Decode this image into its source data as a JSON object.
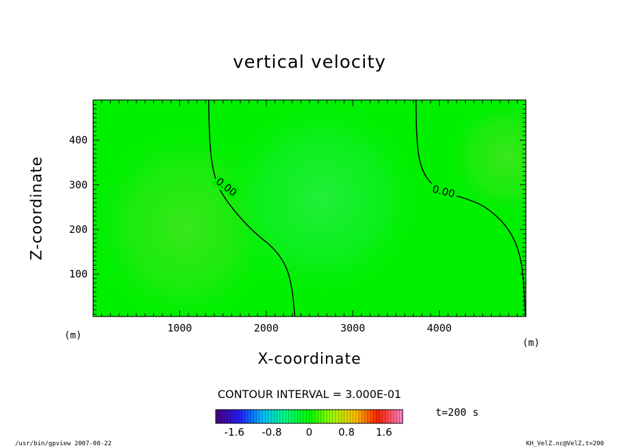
{
  "chart_data": {
    "type": "heatmap",
    "title": "vertical velocity",
    "xlabel": "X-coordinate",
    "ylabel": "Z-coordinate",
    "x_unit": "(m)",
    "y_unit": "(m)",
    "xlim": [
      0,
      5000
    ],
    "ylim": [
      5,
      490
    ],
    "xticks": [
      1000,
      2000,
      3000,
      4000
    ],
    "yticks": [
      100,
      200,
      300,
      400
    ],
    "contour_interval_label": "CONTOUR INTERVAL = 3.000E-01",
    "contour_labels": [
      "0.00",
      "0.00"
    ],
    "zero_contours": [
      [
        [
          1335,
          490
        ],
        [
          1340,
          430
        ],
        [
          1360,
          360
        ],
        [
          1420,
          305
        ],
        [
          1520,
          270
        ],
        [
          1680,
          230
        ],
        [
          1880,
          190
        ],
        [
          2080,
          160
        ],
        [
          2230,
          120
        ],
        [
          2300,
          70
        ],
        [
          2330,
          5
        ]
      ],
      [
        [
          3730,
          490
        ],
        [
          3735,
          420
        ],
        [
          3760,
          360
        ],
        [
          3830,
          320
        ],
        [
          3950,
          295
        ],
        [
          4100,
          280
        ],
        [
          4300,
          270
        ],
        [
          4550,
          250
        ],
        [
          4820,
          200
        ],
        [
          4960,
          130
        ],
        [
          4995,
          5
        ]
      ]
    ],
    "colorbar": {
      "min": -2.0,
      "max": 2.0,
      "ticks": [
        "-1.6",
        "-0.8",
        "0",
        "0.8",
        "1.6"
      ],
      "tick_values": [
        -1.6,
        -0.8,
        0,
        0.8,
        1.6
      ],
      "colors": [
        "#4b0082",
        "#2020ff",
        "#00c0ff",
        "#00ff80",
        "#00ff00",
        "#a0ff00",
        "#ffc000",
        "#ff2000",
        "#ff80c0"
      ]
    },
    "field_colors": {
      "background": "#00f000",
      "positive_blob": "#20f030",
      "negative_blob": "#30e820"
    },
    "time_label": "t=200 s"
  },
  "footer": {
    "left": "/usr/bin/gpview   2007-08-22",
    "right": "KH_VelZ.nc@VelZ,t=200"
  }
}
